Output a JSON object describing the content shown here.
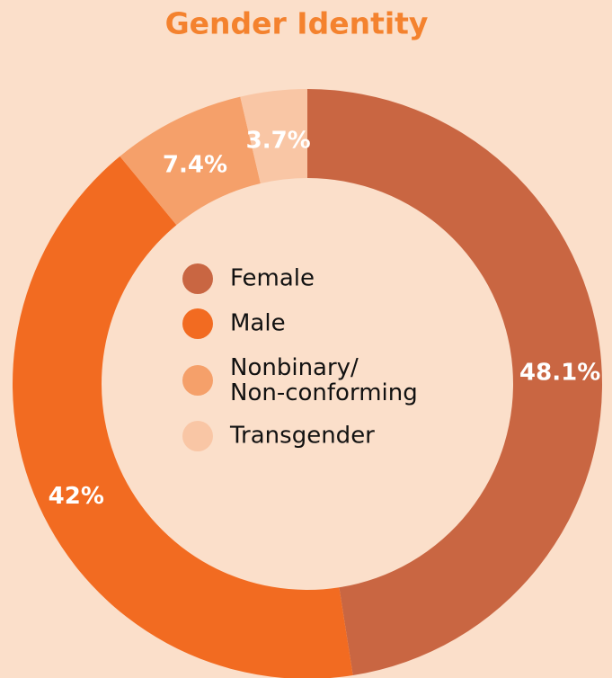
{
  "chart_data": {
    "type": "donut",
    "title": "Gender Identity",
    "categories": [
      "Female",
      "Male",
      "Nonbinary/\nNon-conforming",
      "Transgender"
    ],
    "values": [
      48.1,
      42,
      7.4,
      3.7
    ],
    "value_labels": [
      "48.1%",
      "42%",
      "7.4%",
      "3.7%"
    ],
    "colors": [
      "#c96642",
      "#f26b21",
      "#f5a06a",
      "#f9c6a5"
    ]
  }
}
